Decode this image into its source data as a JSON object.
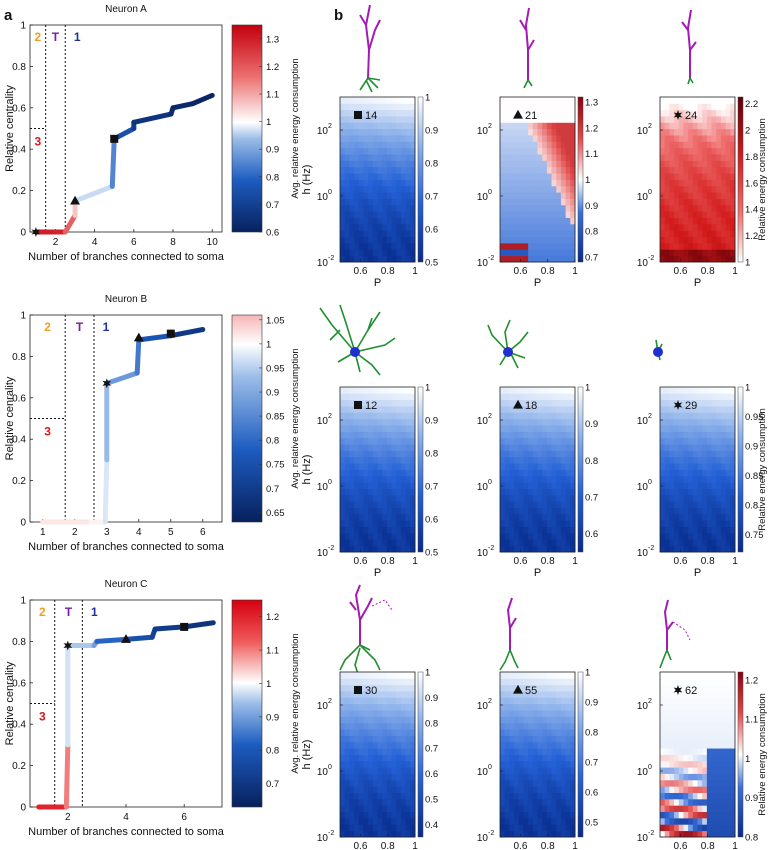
{
  "panel_a_label": "a",
  "panel_b_label": "b",
  "markers": {
    "square": "■",
    "triangle": "▲",
    "star": "✱"
  },
  "rows": [
    {
      "title": "Neuron A",
      "xlabel": "Number of branches connected to soma",
      "ylabel": "Relative centrality",
      "xticks": [
        "2",
        "4",
        "6",
        "8",
        "10"
      ],
      "yticks": [
        "0",
        "0.2",
        "0.4",
        "0.6",
        "0.8",
        "1"
      ],
      "region_labels": [
        "2",
        "T",
        "1",
        "3"
      ],
      "colorbar_label": "Avg. relative energy consumption",
      "colorbar_ticks": [
        "0.6",
        "0.7",
        "0.8",
        "0.9",
        "1",
        "1.1",
        "1.2",
        "1.3"
      ],
      "heatmaps": [
        {
          "marker": "square",
          "id": "14",
          "cb_ticks": [
            "0.5",
            "0.6",
            "0.7",
            "0.8",
            "0.9",
            "1"
          ],
          "cb_label": ""
        },
        {
          "marker": "triangle",
          "id": "21",
          "cb_ticks": [
            "0.7",
            "0.8",
            "0.9",
            "1",
            "1.1",
            "1.2",
            "1.3"
          ],
          "cb_label": ""
        },
        {
          "marker": "star",
          "id": "24",
          "cb_ticks": [
            "1",
            "1.2",
            "1.4",
            "1.6",
            "1.8",
            "2",
            "2.2"
          ],
          "cb_label": "Relative energy consumption"
        }
      ]
    },
    {
      "title": "Neuron B",
      "xlabel": "Number of branches connected to soma",
      "ylabel": "Relative cenrality",
      "xticks": [
        "1",
        "2",
        "3",
        "4",
        "5",
        "6"
      ],
      "yticks": [
        "0",
        "0.2",
        "0.4",
        "0.6",
        "0.8",
        "1"
      ],
      "region_labels": [
        "2",
        "T",
        "1",
        "3"
      ],
      "colorbar_label": "Avg. relative energy consumption",
      "colorbar_ticks": [
        "0.65",
        "0.7",
        "0.75",
        "0.8",
        "0.85",
        "0.9",
        "0.95",
        "1",
        "1.05"
      ],
      "heatmaps": [
        {
          "marker": "square",
          "id": "12",
          "cb_ticks": [
            "0.5",
            "0.6",
            "0.7",
            "0.8",
            "0.9",
            "1"
          ],
          "cb_label": ""
        },
        {
          "marker": "triangle",
          "id": "18",
          "cb_ticks": [
            "0.6",
            "0.7",
            "0.8",
            "0.9",
            "1"
          ],
          "cb_label": ""
        },
        {
          "marker": "star",
          "id": "29",
          "cb_ticks": [
            "0.75",
            "0.8",
            "0.85",
            "0.9",
            "0.95",
            "1"
          ],
          "cb_label": "Relative energy consumption"
        }
      ]
    },
    {
      "title": "Neuron C",
      "xlabel": "Number of branches connected to soma",
      "ylabel": "Relative cenrality",
      "xticks": [
        "2",
        "4",
        "6"
      ],
      "yticks": [
        "0",
        "0.2",
        "0.4",
        "0.6",
        "0.8",
        "1"
      ],
      "region_labels": [
        "2",
        "T",
        "1",
        "3"
      ],
      "colorbar_label": "Avg. relative energy consumption",
      "colorbar_ticks": [
        "0.7",
        "0.8",
        "0.9",
        "1",
        "1.1",
        "1.2"
      ],
      "heatmaps": [
        {
          "marker": "square",
          "id": "30",
          "cb_ticks": [
            "0.4",
            "0.5",
            "0.6",
            "0.7",
            "0.8",
            "0.9",
            "1"
          ],
          "cb_label": ""
        },
        {
          "marker": "triangle",
          "id": "55",
          "cb_ticks": [
            "0.5",
            "0.6",
            "0.7",
            "0.8",
            "0.9",
            "1"
          ],
          "cb_label": ""
        },
        {
          "marker": "star",
          "id": "62",
          "cb_ticks": [
            "0.8",
            "0.9",
            "1",
            "1.1",
            "1.2"
          ],
          "cb_label": "Relative energy consumption"
        }
      ]
    }
  ],
  "heatmap_axes": {
    "xlabel": "P",
    "ylabel": "h (Hz)",
    "xticks": [
      "0.6",
      "0.8",
      "1"
    ],
    "yticks_base": "10",
    "yticks_exp": [
      "2",
      "0",
      "-2"
    ]
  },
  "chart_data": [
    {
      "type": "line",
      "title": "Neuron A",
      "xlabel": "Number of branches connected to soma",
      "ylabel": "Relative centrality",
      "xlim": [
        0.7,
        10.5
      ],
      "ylim": [
        0,
        1
      ],
      "colorbar_range": [
        0.6,
        1.35
      ],
      "line": [
        {
          "x": 1.0,
          "y": 0.0,
          "c": 1.3
        },
        {
          "x": 2.0,
          "y": 0.0,
          "c": 1.3
        },
        {
          "x": 2.5,
          "y": 0.0,
          "c": 1.28
        },
        {
          "x": 3.0,
          "y": 0.08,
          "c": 1.1
        },
        {
          "x": 3.0,
          "y": 0.15,
          "c": 1.03
        },
        {
          "x": 4.9,
          "y": 0.22,
          "c": 0.9
        },
        {
          "x": 5.0,
          "y": 0.45,
          "c": 0.8
        },
        {
          "x": 6.0,
          "y": 0.5,
          "c": 0.7
        },
        {
          "x": 6.0,
          "y": 0.53,
          "c": 0.68
        },
        {
          "x": 7.9,
          "y": 0.57,
          "c": 0.64
        },
        {
          "x": 8.0,
          "y": 0.6,
          "c": 0.63
        },
        {
          "x": 9.0,
          "y": 0.62,
          "c": 0.62
        },
        {
          "x": 10.0,
          "y": 0.66,
          "c": 0.61
        }
      ],
      "markers": [
        {
          "shape": "star",
          "x": 1.0,
          "y": 0.0
        },
        {
          "shape": "triangle",
          "x": 3.0,
          "y": 0.15
        },
        {
          "shape": "square",
          "x": 5.0,
          "y": 0.45
        }
      ],
      "region_bounds": {
        "v1": 1.5,
        "v2": 2.5,
        "h3": 0.5
      }
    },
    {
      "type": "line",
      "title": "Neuron B",
      "xlabel": "Number of branches connected to soma",
      "ylabel": "Relative cenrality",
      "xlim": [
        0.6,
        6.6
      ],
      "ylim": [
        0,
        1
      ],
      "colorbar_range": [
        0.63,
        1.06
      ],
      "line": [
        {
          "x": 1.0,
          "y": 0.0,
          "c": 1.02
        },
        {
          "x": 2.5,
          "y": 0.0,
          "c": 1.02
        },
        {
          "x": 2.95,
          "y": 0.0,
          "c": 1.0
        },
        {
          "x": 3.0,
          "y": 0.3,
          "c": 0.95
        },
        {
          "x": 3.0,
          "y": 0.67,
          "c": 0.9
        },
        {
          "x": 3.95,
          "y": 0.72,
          "c": 0.85
        },
        {
          "x": 4.0,
          "y": 0.88,
          "c": 0.8
        },
        {
          "x": 5.0,
          "y": 0.9,
          "c": 0.72
        },
        {
          "x": 6.0,
          "y": 0.93,
          "c": 0.66
        }
      ],
      "markers": [
        {
          "shape": "star",
          "x": 3.0,
          "y": 0.67
        },
        {
          "shape": "triangle",
          "x": 4.0,
          "y": 0.89
        },
        {
          "shape": "square",
          "x": 5.0,
          "y": 0.91
        }
      ],
      "region_bounds": {
        "v1": 1.7,
        "v2": 2.6,
        "h3": 0.5
      }
    },
    {
      "type": "line",
      "title": "Neuron C",
      "xlabel": "Number of branches connected to soma",
      "ylabel": "Relative cenrality",
      "xlim": [
        0.7,
        7.3
      ],
      "ylim": [
        0,
        1
      ],
      "colorbar_range": [
        0.63,
        1.25
      ],
      "line": [
        {
          "x": 1.0,
          "y": 0.0,
          "c": 1.2
        },
        {
          "x": 1.95,
          "y": 0.0,
          "c": 1.2
        },
        {
          "x": 2.0,
          "y": 0.3,
          "c": 1.0
        },
        {
          "x": 2.0,
          "y": 0.78,
          "c": 0.95
        },
        {
          "x": 2.9,
          "y": 0.78,
          "c": 0.95
        },
        {
          "x": 3.0,
          "y": 0.8,
          "c": 0.85
        },
        {
          "x": 4.0,
          "y": 0.81,
          "c": 0.8
        },
        {
          "x": 4.9,
          "y": 0.82,
          "c": 0.75
        },
        {
          "x": 5.0,
          "y": 0.86,
          "c": 0.72
        },
        {
          "x": 6.0,
          "y": 0.87,
          "c": 0.7
        },
        {
          "x": 7.0,
          "y": 0.89,
          "c": 0.68
        }
      ],
      "markers": [
        {
          "shape": "star",
          "x": 2.0,
          "y": 0.78
        },
        {
          "shape": "triangle",
          "x": 4.0,
          "y": 0.81
        },
        {
          "shape": "square",
          "x": 6.0,
          "y": 0.87
        }
      ],
      "region_bounds": {
        "v1": 1.55,
        "v2": 2.5,
        "h3": 0.5
      }
    },
    {
      "type": "heatmap",
      "panels": [
        {
          "id": "14",
          "marker": "square",
          "xlim": [
            0.45,
            1
          ],
          "ylim_log10": [
            -2,
            3
          ],
          "crange": [
            0.5,
            1
          ],
          "map": "blue"
        },
        {
          "id": "21",
          "marker": "triangle",
          "xlim": [
            0.45,
            1
          ],
          "ylim_log10": [
            -2,
            3
          ],
          "crange": [
            0.68,
            1.32
          ],
          "map": "diverging"
        },
        {
          "id": "24",
          "marker": "star",
          "xlim": [
            0.45,
            1
          ],
          "ylim_log10": [
            -2,
            3
          ],
          "crange": [
            1,
            2.25
          ],
          "map": "red"
        },
        {
          "id": "12",
          "marker": "square",
          "xlim": [
            0.45,
            1
          ],
          "ylim_log10": [
            -2,
            3
          ],
          "crange": [
            0.5,
            1
          ],
          "map": "blue"
        },
        {
          "id": "18",
          "marker": "triangle",
          "xlim": [
            0.45,
            1
          ],
          "ylim_log10": [
            -2,
            3
          ],
          "crange": [
            0.55,
            1
          ],
          "map": "blue"
        },
        {
          "id": "29",
          "marker": "star",
          "xlim": [
            0.45,
            1
          ],
          "ylim_log10": [
            -2,
            3
          ],
          "crange": [
            0.72,
            1
          ],
          "map": "blue"
        },
        {
          "id": "30",
          "marker": "square",
          "xlim": [
            0.45,
            1
          ],
          "ylim_log10": [
            -2,
            3
          ],
          "crange": [
            0.35,
            1
          ],
          "map": "blue"
        },
        {
          "id": "55",
          "marker": "triangle",
          "xlim": [
            0.45,
            1
          ],
          "ylim_log10": [
            -2,
            3
          ],
          "crange": [
            0.45,
            1
          ],
          "map": "blue"
        },
        {
          "id": "62",
          "marker": "star",
          "xlim": [
            0.45,
            1
          ],
          "ylim_log10": [
            -2,
            3
          ],
          "crange": [
            0.8,
            1.22
          ],
          "map": "diverging"
        }
      ]
    }
  ],
  "colors": {
    "morph_purple": "#a31ab4",
    "morph_green": "#1f8f2f",
    "soma_blue": "#1f2fd0",
    "axis": "#222222",
    "label_orange": "#f0a020",
    "label_purple": "#7a1fa0",
    "label_blue": "#2030a0",
    "label_red": "#d81b1b"
  }
}
